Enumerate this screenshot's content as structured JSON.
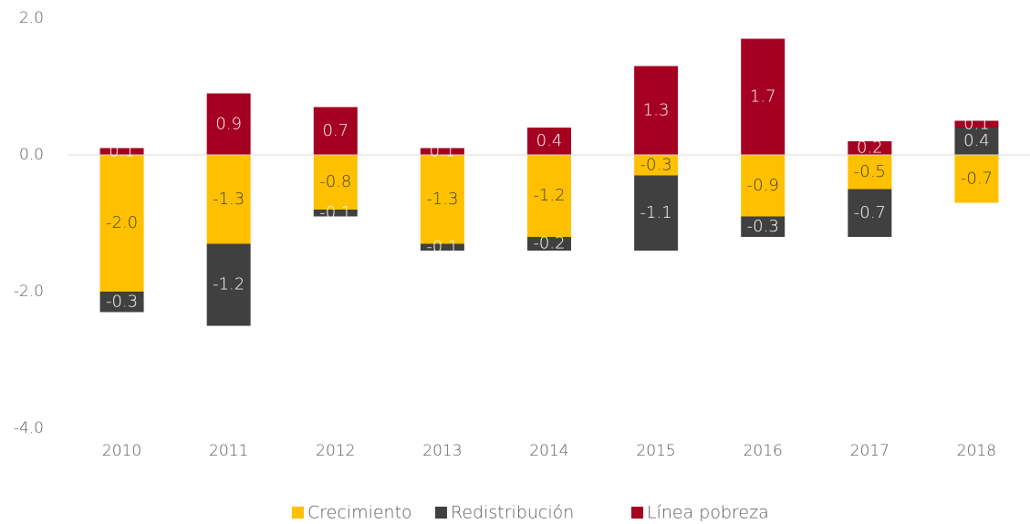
{
  "chart_data": {
    "type": "bar",
    "stacked": true,
    "categories": [
      "2010",
      "2011",
      "2012",
      "2013",
      "2014",
      "2015",
      "2016",
      "2017",
      "2018"
    ],
    "series": [
      {
        "name": "Crecimiento",
        "color": "#FFC000",
        "values": [
          -2.0,
          -1.3,
          -0.8,
          -1.3,
          -1.2,
          -0.3,
          -0.9,
          -0.5,
          -0.7
        ],
        "value_labels": [
          "-2.0",
          "-1.3",
          "-0.8",
          "-1.3",
          "-1.2",
          "-0.3",
          "-0.9",
          "-0.5",
          "-0.7"
        ]
      },
      {
        "name": "Redistribución",
        "color": "#404040",
        "values": [
          -0.3,
          -1.2,
          -0.1,
          -0.1,
          -0.2,
          -1.1,
          -0.3,
          -0.7,
          0.4
        ],
        "value_labels": [
          "-0.3",
          "-1.2",
          "-0.1",
          "-0.1",
          "-0.2",
          "-1.1",
          "-0.3",
          "-0.7",
          "0.4"
        ]
      },
      {
        "name": "Línea pobreza",
        "color": "#A50021",
        "values": [
          0.1,
          0.9,
          0.7,
          0.1,
          0.4,
          1.3,
          1.7,
          0.2,
          0.1
        ],
        "value_labels": [
          "0.1",
          "0.9",
          "0.7",
          "0.1",
          "0.4",
          "1.3",
          "1.7",
          "0.2",
          "0.1"
        ]
      }
    ],
    "ylim": [
      -4,
      2
    ],
    "yticks": [
      {
        "value": 2,
        "label": "2.0"
      },
      {
        "value": 0,
        "label": "0.0"
      },
      {
        "value": -2,
        "label": "-2.0"
      },
      {
        "value": -4,
        "label": "-4.0"
      }
    ],
    "grid": false,
    "legend": "bottom"
  }
}
